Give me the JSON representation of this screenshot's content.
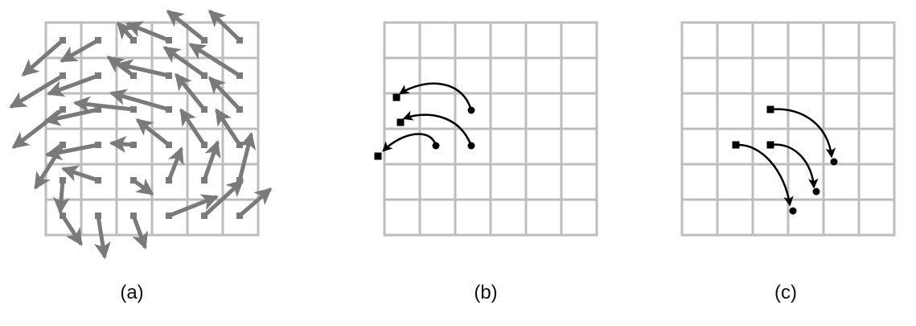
{
  "panels": [
    {
      "id": "a",
      "caption": "(a)"
    },
    {
      "id": "b",
      "caption": "(b)"
    },
    {
      "id": "c",
      "caption": "(c)"
    }
  ],
  "colors": {
    "grid": "#bdbdbd",
    "vector_field": "#7a7a7a",
    "trajectory": "#000000",
    "background": "#ffffff"
  }
}
